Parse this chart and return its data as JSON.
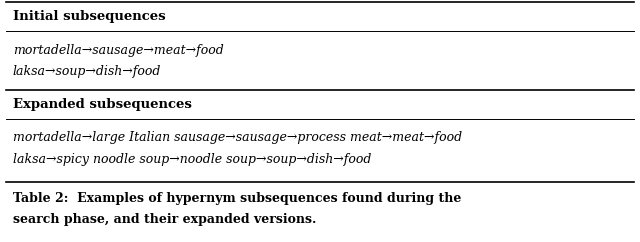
{
  "fig_width": 6.4,
  "fig_height": 2.42,
  "dpi": 100,
  "background_color": "#ffffff",
  "header1": "Initial subsequences",
  "header2": "Expanded subsequences",
  "initial_rows": [
    "mortadella→sausage→meat→food",
    "laksa→soup→dish→food"
  ],
  "expanded_rows": [
    "mortadella→large Italian sausage→sausage→process meat→meat→food",
    "laksa→spicy noodle soup→noodle soup→soup→dish→food"
  ],
  "caption_bold": "Table 2: ",
  "caption_line1": "Table 2:  Examples of hypernym subsequences found during the",
  "caption_line2": "search phase, and their expanded versions.",
  "header_fontsize": 9.5,
  "row_fontsize": 9.0,
  "caption_fontsize": 9.0,
  "border_color": "#000000",
  "header_color": "#000000",
  "text_color": "#000000",
  "lw_thick": 1.2,
  "lw_thin": 0.7
}
